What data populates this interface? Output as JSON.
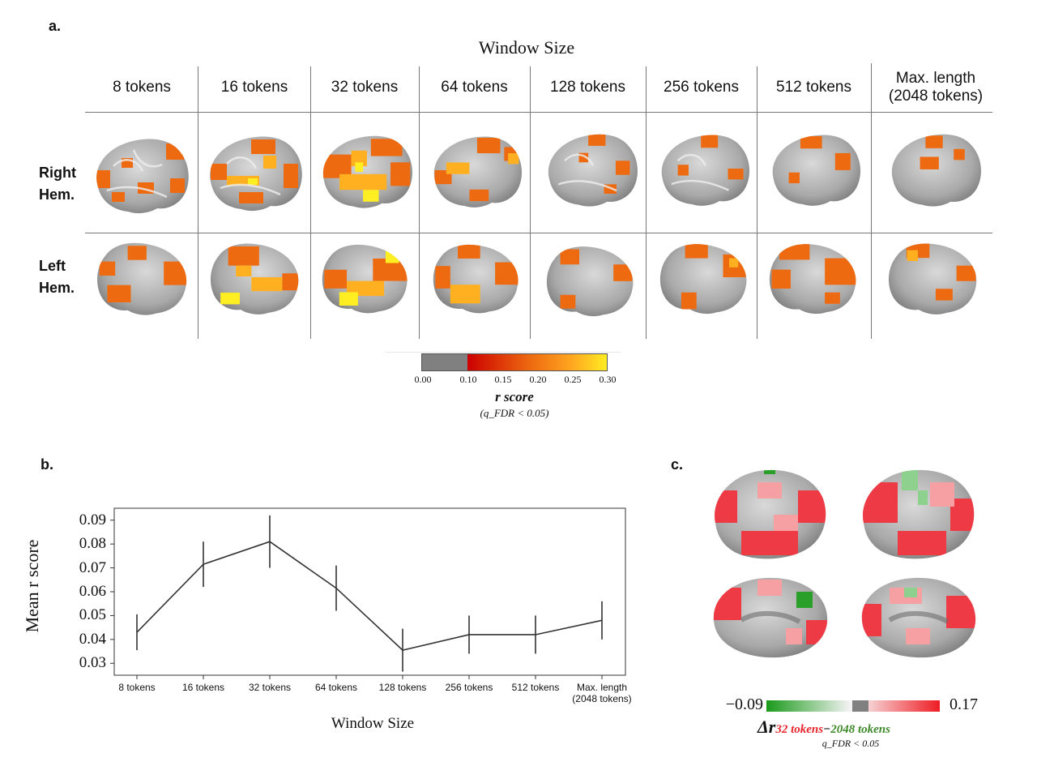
{
  "panel_a": {
    "letter": "a.",
    "title": "Window Size",
    "columns": [
      "8 tokens",
      "16 tokens",
      "32 tokens",
      "64 tokens",
      "128 tokens",
      "256 tokens",
      "512 tokens",
      "Max. length\n(2048 tokens)"
    ],
    "rows": [
      "Right\nHem.",
      "Left\nHem."
    ],
    "colorbar": {
      "ticks": [
        "0.00",
        "0.10",
        "0.15",
        "0.20",
        "0.25",
        "0.30"
      ],
      "label": "r score",
      "sublabel": "(q_FDR < 0.05)"
    },
    "colors": {
      "gray": "#808080",
      "red": "#d40000",
      "orange": "#ee6a10",
      "yellow": "#ffee22"
    }
  },
  "panel_b": {
    "letter": "b.",
    "chart_data": {
      "type": "line",
      "categories": [
        "8 tokens",
        "16 tokens",
        "32 tokens",
        "64 tokens",
        "128 tokens",
        "256 tokens",
        "512 tokens",
        "Max. length\n(2048 tokens)"
      ],
      "values": [
        0.043,
        0.0715,
        0.081,
        0.0615,
        0.0355,
        0.042,
        0.042,
        0.048
      ],
      "error": [
        0.0075,
        0.0095,
        0.011,
        0.0095,
        0.009,
        0.008,
        0.008,
        0.008
      ],
      "xlabel": "Window Size",
      "ylabel": "Mean r score",
      "yticks": [
        0.03,
        0.04,
        0.05,
        0.06,
        0.07,
        0.08,
        0.09
      ],
      "ylim": [
        0.025,
        0.095
      ],
      "grid": false
    }
  },
  "panel_c": {
    "letter": "c.",
    "colorbar": {
      "min_label": "−0.09",
      "max_label": "0.17",
      "label_delta": "Δr",
      "label_red": "32 tokens",
      "label_minus": "−",
      "label_green": "2048 tokens",
      "sublabel": "q_FDR < 0.05"
    },
    "colors": {
      "green": "#2aa02a",
      "red": "#ee1c24",
      "gray": "#808080"
    }
  }
}
